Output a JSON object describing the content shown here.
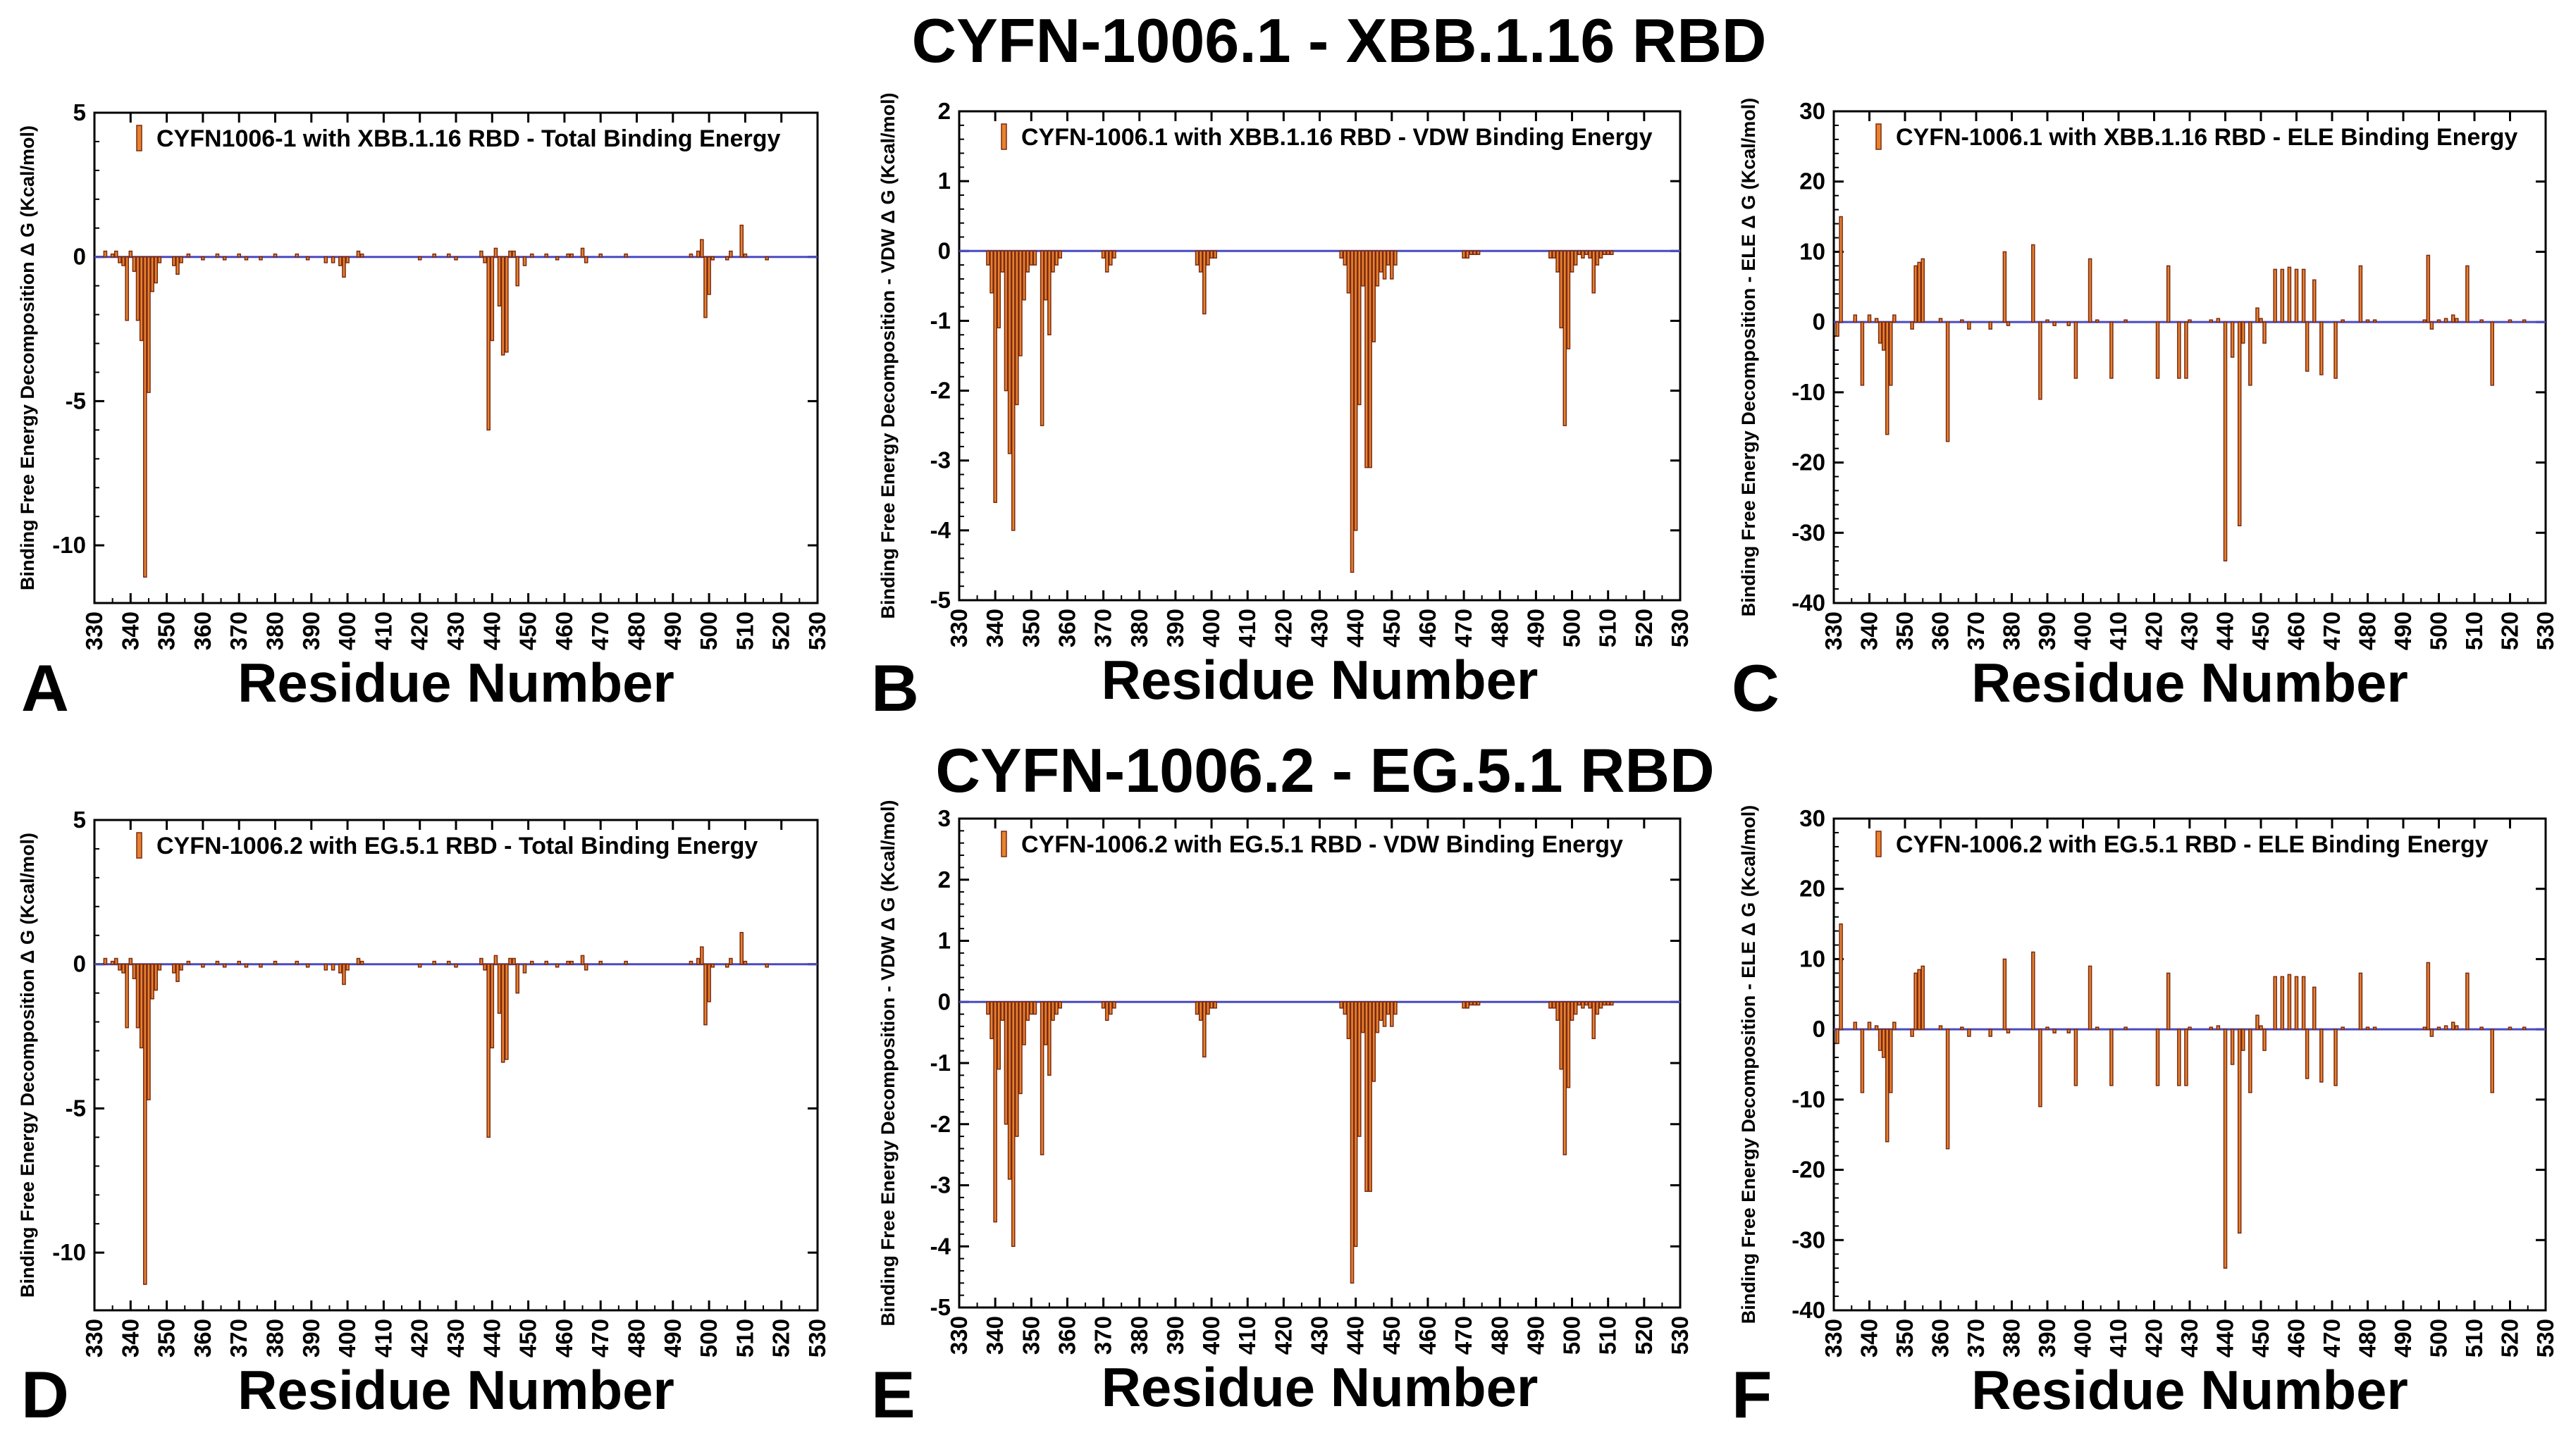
{
  "titles": {
    "top": "CYFN-1006.1 - XBB.1.16 RBD",
    "bottom": "CYFN-1006.2 - EG.5.1 RBD"
  },
  "colors": {
    "bar": "#e8822e",
    "bar_edge": "#7a2a10",
    "baseline": "#4a4ac0"
  },
  "chart_data": [
    {
      "type": "bar",
      "panel": "A",
      "title": "",
      "legend": "CYFN1006-1 with XBB.1.16 RBD - Total Binding Energy",
      "xlabel": "Residue Number",
      "ylabel": "Binding Free Energy Decomposition Δ G (Kcal/mol)",
      "xlim": [
        330,
        530
      ],
      "ylim": [
        -12,
        5
      ],
      "xticks": [
        330,
        340,
        350,
        360,
        370,
        380,
        390,
        400,
        410,
        420,
        430,
        440,
        450,
        460,
        470,
        480,
        490,
        500,
        510,
        520,
        530
      ],
      "yticks": [
        -10,
        -5,
        0,
        5
      ],
      "x": [
        333,
        335,
        336,
        337,
        338,
        339,
        340,
        341,
        342,
        343,
        344,
        345,
        346,
        347,
        348,
        352,
        353,
        354,
        356,
        360,
        364,
        366,
        370,
        372,
        376,
        380,
        386,
        389,
        394,
        396,
        398,
        399,
        400,
        403,
        404,
        420,
        424,
        428,
        430,
        437,
        438,
        439,
        440,
        441,
        442,
        443,
        444,
        445,
        446,
        447,
        449,
        451,
        455,
        458,
        461,
        462,
        465,
        466,
        470,
        477,
        495,
        497,
        498,
        499,
        500,
        501,
        505,
        506,
        509,
        510,
        516
      ],
      "values": [
        0.2,
        0.1,
        0.2,
        -0.2,
        -0.3,
        -2.2,
        0.2,
        -0.5,
        -2.2,
        -2.9,
        -11.1,
        -4.7,
        -1.2,
        -0.9,
        -0.2,
        -0.3,
        -0.6,
        -0.2,
        0.1,
        -0.1,
        0.1,
        -0.1,
        0.1,
        -0.1,
        -0.1,
        0.1,
        0.1,
        -0.1,
        -0.2,
        -0.2,
        -0.3,
        -0.7,
        -0.2,
        0.2,
        0.1,
        -0.1,
        0.1,
        0.1,
        -0.1,
        0.2,
        -0.2,
        -6.0,
        -2.9,
        0.3,
        -1.7,
        -3.4,
        -3.3,
        0.2,
        0.2,
        -1.0,
        -0.3,
        0.1,
        0.1,
        -0.1,
        0.1,
        0.1,
        0.3,
        -0.2,
        0.1,
        0.1,
        0.1,
        0.2,
        0.6,
        -2.1,
        -1.3,
        -0.1,
        -0.1,
        0.2,
        1.1,
        0.1,
        -0.1
      ]
    },
    {
      "type": "bar",
      "panel": "B",
      "title": "",
      "legend": "CYFN-1006.1 with XBB.1.16 RBD -  VDW Binding Energy",
      "xlabel": "Residue Number",
      "ylabel": "Binding Free Energy Decomposition - VDW Δ G (Kcal/mol)",
      "xlim": [
        330,
        530
      ],
      "ylim": [
        -5,
        2
      ],
      "xticks": [
        330,
        340,
        350,
        360,
        370,
        380,
        390,
        400,
        410,
        420,
        430,
        440,
        450,
        460,
        470,
        480,
        490,
        500,
        510,
        520,
        530
      ],
      "yticks": [
        -5,
        -4,
        -3,
        -2,
        -1,
        0,
        1,
        2
      ],
      "x": [
        338,
        339,
        340,
        341,
        342,
        343,
        344,
        345,
        346,
        347,
        348,
        349,
        350,
        351,
        353,
        354,
        355,
        356,
        357,
        358,
        370,
        371,
        372,
        373,
        396,
        397,
        398,
        399,
        400,
        401,
        436,
        437,
        438,
        439,
        440,
        441,
        442,
        443,
        444,
        445,
        446,
        447,
        448,
        449,
        450,
        451,
        470,
        471,
        472,
        473,
        474,
        494,
        495,
        496,
        497,
        498,
        499,
        500,
        501,
        502,
        503,
        504,
        505,
        506,
        507,
        508,
        509,
        510,
        511
      ],
      "values": [
        -0.2,
        -0.6,
        -3.6,
        -1.1,
        -0.3,
        -2.0,
        -2.9,
        -4.0,
        -2.2,
        -1.5,
        -0.7,
        -0.3,
        -0.2,
        -0.2,
        -2.5,
        -0.7,
        -1.2,
        -0.3,
        -0.2,
        -0.1,
        -0.1,
        -0.3,
        -0.2,
        -0.1,
        -0.2,
        -0.3,
        -0.9,
        -0.2,
        -0.1,
        -0.1,
        -0.1,
        -0.2,
        -0.6,
        -4.6,
        -4.0,
        -2.2,
        -0.5,
        -3.1,
        -3.1,
        -1.3,
        -0.5,
        -0.3,
        -0.4,
        -0.2,
        -0.4,
        -0.2,
        -0.1,
        -0.1,
        -0.05,
        -0.05,
        -0.05,
        -0.1,
        -0.1,
        -0.3,
        -1.1,
        -2.5,
        -1.4,
        -0.3,
        -0.2,
        -0.05,
        -0.1,
        -0.05,
        -0.1,
        -0.6,
        -0.2,
        -0.1,
        -0.05,
        -0.05,
        -0.05
      ]
    },
    {
      "type": "bar",
      "panel": "C",
      "title": "",
      "legend": "CYFN-1006.1 with XBB.1.16 RBD -  ELE Binding Energy",
      "xlabel": "Residue Number",
      "ylabel": "Binding Free Energy Decomposition - ELE Δ G (Kcal/mol)",
      "xlim": [
        330,
        530
      ],
      "ylim": [
        -40,
        30
      ],
      "xticks": [
        330,
        340,
        350,
        360,
        370,
        380,
        390,
        400,
        410,
        420,
        430,
        440,
        450,
        460,
        470,
        480,
        490,
        500,
        510,
        520,
        530
      ],
      "yticks": [
        -40,
        -30,
        -20,
        -10,
        0,
        10,
        20,
        30
      ],
      "x": [
        331,
        332,
        336,
        338,
        340,
        342,
        343,
        344,
        345,
        346,
        347,
        352,
        353,
        354,
        355,
        360,
        362,
        366,
        368,
        374,
        378,
        379,
        386,
        388,
        390,
        392,
        396,
        398,
        402,
        404,
        408,
        412,
        421,
        424,
        427,
        429,
        430,
        436,
        438,
        440,
        442,
        444,
        445,
        447,
        449,
        450,
        451,
        454,
        456,
        458,
        460,
        462,
        463,
        465,
        467,
        471,
        473,
        478,
        480,
        482,
        496,
        497,
        498,
        500,
        502,
        504,
        505,
        508,
        512,
        515,
        520,
        524
      ],
      "values": [
        -2,
        15,
        1,
        -9,
        1,
        0.5,
        -3,
        -4,
        -16,
        -9,
        1,
        -1,
        8,
        8.5,
        9,
        0.5,
        -17,
        0.3,
        -1,
        -1,
        10,
        -0.5,
        11,
        -11,
        0.3,
        -0.5,
        -0.5,
        -8,
        9,
        0.3,
        -8,
        0.3,
        -8,
        8,
        -8,
        -8,
        0.3,
        0.3,
        0.5,
        -34,
        -5,
        -29,
        -3,
        -9,
        2,
        0.5,
        -3,
        7.5,
        7.5,
        7.8,
        7.5,
        7.5,
        -7,
        6,
        -7.5,
        -8,
        0.3,
        8,
        0.3,
        0.3,
        0.3,
        9.5,
        -1,
        0.3,
        0.5,
        1,
        0.5,
        8,
        0.3,
        -9,
        0.3,
        0.3
      ]
    },
    {
      "type": "bar",
      "panel": "D",
      "title": "",
      "legend": "CYFN-1006.2  with EG.5.1 RBD -  Total Binding Energy",
      "xlabel": "Residue Number",
      "ylabel": "Binding Free Energy Decomposition Δ G (Kcal/mol)",
      "xlim": [
        330,
        530
      ],
      "ylim": [
        -12,
        5
      ],
      "xticks": [
        330,
        340,
        350,
        360,
        370,
        380,
        390,
        400,
        410,
        420,
        430,
        440,
        450,
        460,
        470,
        480,
        490,
        500,
        510,
        520,
        530
      ],
      "yticks": [
        -10,
        -5,
        0,
        5
      ],
      "x": [
        333,
        335,
        336,
        337,
        338,
        339,
        340,
        341,
        342,
        343,
        344,
        345,
        346,
        347,
        348,
        352,
        353,
        354,
        356,
        360,
        364,
        366,
        370,
        372,
        376,
        380,
        386,
        389,
        394,
        396,
        398,
        399,
        400,
        403,
        404,
        420,
        424,
        428,
        430,
        437,
        438,
        439,
        440,
        441,
        442,
        443,
        444,
        445,
        446,
        447,
        449,
        451,
        455,
        458,
        461,
        462,
        465,
        466,
        470,
        477,
        495,
        497,
        498,
        499,
        500,
        501,
        505,
        506,
        509,
        510,
        516
      ],
      "values": [
        0.2,
        0.1,
        0.2,
        -0.2,
        -0.3,
        -2.2,
        0.2,
        -0.5,
        -2.2,
        -2.9,
        -11.1,
        -4.7,
        -1.2,
        -0.9,
        -0.2,
        -0.3,
        -0.6,
        -0.2,
        0.1,
        -0.1,
        0.1,
        -0.1,
        0.1,
        -0.1,
        -0.1,
        0.1,
        0.1,
        -0.1,
        -0.2,
        -0.2,
        -0.3,
        -0.7,
        -0.2,
        0.2,
        0.1,
        -0.1,
        0.1,
        0.1,
        -0.1,
        0.2,
        -0.2,
        -6.0,
        -2.9,
        0.3,
        -1.7,
        -3.4,
        -3.3,
        0.2,
        0.2,
        -1.0,
        -0.3,
        0.1,
        0.1,
        -0.1,
        0.1,
        0.1,
        0.3,
        -0.2,
        0.1,
        0.1,
        0.1,
        0.2,
        0.6,
        -2.1,
        -1.3,
        -0.1,
        -0.1,
        0.2,
        1.1,
        0.1,
        -0.1
      ]
    },
    {
      "type": "bar",
      "panel": "E",
      "title": "",
      "legend": "CYFN-1006.2 with EG.5.1 RBD -  VDW Binding Energy",
      "xlabel": "Residue Number",
      "ylabel": "Binding Free Energy Decomposition - VDW Δ G (Kcal/mol)",
      "xlim": [
        330,
        530
      ],
      "ylim": [
        -5,
        3
      ],
      "xticks": [
        330,
        340,
        350,
        360,
        370,
        380,
        390,
        400,
        410,
        420,
        430,
        440,
        450,
        460,
        470,
        480,
        490,
        500,
        510,
        520,
        530
      ],
      "yticks": [
        -5,
        -4,
        -3,
        -2,
        -1,
        0,
        1,
        2,
        3
      ],
      "x": [
        338,
        339,
        340,
        341,
        342,
        343,
        344,
        345,
        346,
        347,
        348,
        349,
        350,
        351,
        353,
        354,
        355,
        356,
        357,
        358,
        370,
        371,
        372,
        373,
        396,
        397,
        398,
        399,
        400,
        401,
        436,
        437,
        438,
        439,
        440,
        441,
        442,
        443,
        444,
        445,
        446,
        447,
        448,
        449,
        450,
        451,
        470,
        471,
        472,
        473,
        474,
        494,
        495,
        496,
        497,
        498,
        499,
        500,
        501,
        502,
        503,
        504,
        505,
        506,
        507,
        508,
        509,
        510,
        511
      ],
      "values": [
        -0.2,
        -0.6,
        -3.6,
        -1.1,
        -0.3,
        -2.0,
        -2.9,
        -4.0,
        -2.2,
        -1.5,
        -0.7,
        -0.3,
        -0.2,
        -0.2,
        -2.5,
        -0.7,
        -1.2,
        -0.3,
        -0.2,
        -0.1,
        -0.1,
        -0.3,
        -0.2,
        -0.1,
        -0.2,
        -0.3,
        -0.9,
        -0.2,
        -0.1,
        -0.1,
        -0.1,
        -0.2,
        -0.6,
        -4.6,
        -4.0,
        -2.2,
        -0.5,
        -3.1,
        -3.1,
        -1.3,
        -0.5,
        -0.3,
        -0.4,
        -0.2,
        -0.4,
        -0.2,
        -0.1,
        -0.1,
        -0.05,
        -0.05,
        -0.05,
        -0.1,
        -0.1,
        -0.3,
        -1.1,
        -2.5,
        -1.4,
        -0.3,
        -0.2,
        -0.05,
        -0.1,
        -0.05,
        -0.1,
        -0.6,
        -0.2,
        -0.1,
        -0.05,
        -0.05,
        -0.05
      ]
    },
    {
      "type": "bar",
      "panel": "F",
      "title": "",
      "legend": "CYFN-1006.2 with EG.5.1 RBD -  ELE Binding Energy",
      "xlabel": "Residue Number",
      "ylabel": "Binding Free Energy Decomposition - ELE Δ G (Kcal/mol)",
      "xlim": [
        330,
        530
      ],
      "ylim": [
        -40,
        30
      ],
      "xticks": [
        330,
        340,
        350,
        360,
        370,
        380,
        390,
        400,
        410,
        420,
        430,
        440,
        450,
        460,
        470,
        480,
        490,
        500,
        510,
        520,
        530
      ],
      "yticks": [
        -40,
        -30,
        -20,
        -10,
        0,
        10,
        20,
        30
      ],
      "x": [
        331,
        332,
        336,
        338,
        340,
        342,
        343,
        344,
        345,
        346,
        347,
        352,
        353,
        354,
        355,
        360,
        362,
        366,
        368,
        374,
        378,
        379,
        386,
        388,
        390,
        392,
        396,
        398,
        402,
        404,
        408,
        412,
        421,
        424,
        427,
        429,
        430,
        436,
        438,
        440,
        442,
        444,
        445,
        447,
        449,
        450,
        451,
        454,
        456,
        458,
        460,
        462,
        463,
        465,
        467,
        471,
        473,
        478,
        480,
        482,
        496,
        497,
        498,
        500,
        502,
        504,
        505,
        508,
        512,
        515,
        520,
        524
      ],
      "values": [
        -2,
        15,
        1,
        -9,
        1,
        0.5,
        -3,
        -4,
        -16,
        -9,
        1,
        -1,
        8,
        8.5,
        9,
        0.5,
        -17,
        0.3,
        -1,
        -1,
        10,
        -0.5,
        11,
        -11,
        0.3,
        -0.5,
        -0.5,
        -8,
        9,
        0.3,
        -8,
        0.3,
        -8,
        8,
        -8,
        -8,
        0.3,
        0.3,
        0.5,
        -34,
        -5,
        -29,
        -3,
        -9,
        2,
        0.5,
        -3,
        7.5,
        7.5,
        7.8,
        7.5,
        7.5,
        -7,
        6,
        -7.5,
        -8,
        0.3,
        8,
        0.3,
        0.3,
        0.3,
        9.5,
        -1,
        0.3,
        0.5,
        1,
        0.5,
        8,
        0.3,
        -9,
        0.3,
        0.3
      ]
    }
  ]
}
